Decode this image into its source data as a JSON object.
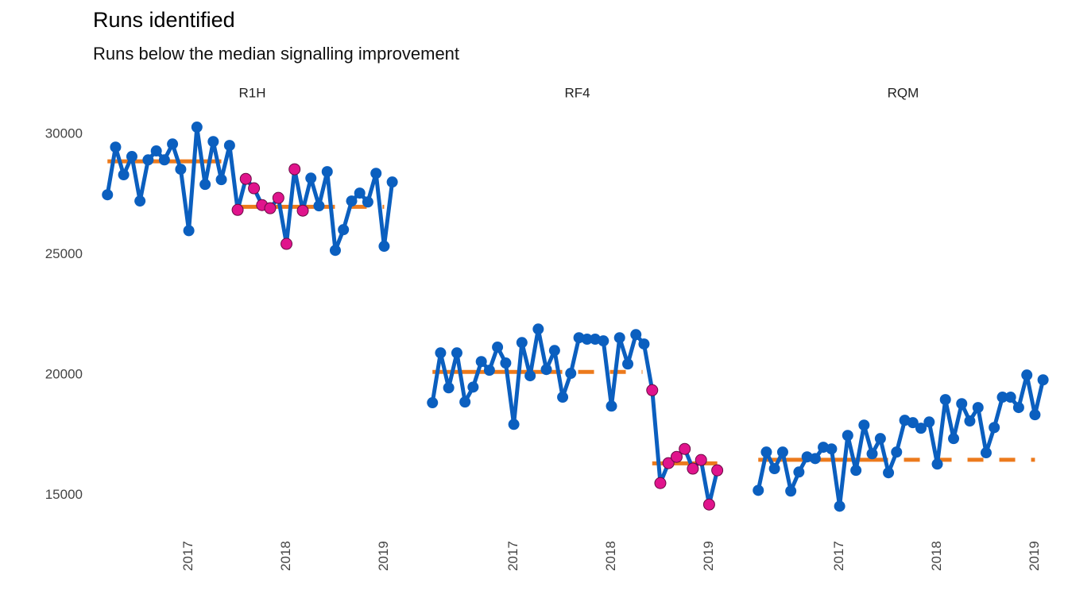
{
  "chart_data": {
    "type": "line",
    "title": "Runs identified",
    "subtitle": "Runs below the median signalling improvement",
    "x": [
      2016.167,
      2016.25,
      2016.333,
      2016.417,
      2016.5,
      2016.583,
      2016.667,
      2016.75,
      2016.833,
      2016.917,
      2017,
      2017.083,
      2017.167,
      2017.25,
      2017.333,
      2017.417,
      2017.5,
      2017.583,
      2017.667,
      2017.75,
      2017.833,
      2017.917,
      2018,
      2018.083,
      2018.167,
      2018.25,
      2018.333,
      2018.417,
      2018.5,
      2018.583,
      2018.667,
      2018.75,
      2018.833,
      2018.917,
      2019,
      2019.083
    ],
    "xlim": [
      2016.1,
      2019.2
    ],
    "xticks": [
      2017,
      2018,
      2019
    ],
    "ylim": [
      14000,
      30500
    ],
    "yticks": [
      15000,
      20000,
      25000,
      30000
    ],
    "panels": [
      {
        "name": "R1H",
        "series": [
          {
            "color": "#0b5fbf",
            "values": [
              27490,
              29470,
              28320,
              29080,
              27230,
              28940,
              29310,
              28940,
              29600,
              28550,
              26000,
              30300,
              27920,
              29700,
              28120,
              29540,
              26860,
              28150,
              27760,
              27060,
              26930,
              27360,
              25450,
              28550,
              26830,
              28180,
              27030,
              28450,
              25180,
              26040,
              27230,
              27560,
              27190,
              28380,
              25350,
              28020
            ]
          },
          {
            "color": "#e0148c",
            "values": [
              null,
              null,
              null,
              null,
              null,
              null,
              null,
              null,
              null,
              null,
              null,
              null,
              null,
              null,
              null,
              null,
              26860,
              28150,
              27760,
              27060,
              26930,
              27360,
              25450,
              28550,
              26830,
              null,
              null,
              null,
              null,
              null,
              null,
              null,
              null,
              null,
              null,
              null
            ]
          }
        ],
        "medians": [
          {
            "value": 28880,
            "solid": [
              2016.167,
              2017.333
            ],
            "dashed": null
          },
          {
            "value": 26990,
            "solid": [
              2017.5,
              2018.333
            ],
            "dashed": [
              2018.333,
              2019.0
            ]
          }
        ]
      },
      {
        "name": "RF4",
        "series": [
          {
            "color": "#0b5fbf",
            "values": [
              18850,
              20920,
              19470,
              20920,
              18880,
              19500,
              20560,
              20200,
              21160,
              20500,
              17950,
              21350,
              19970,
              21910,
              20230,
              21020,
              19080,
              20070,
              21550,
              21490,
              21490,
              21420,
              18710,
              21550,
              20460,
              21680,
              21290,
              19370,
              15510,
              16340,
              16600,
              16930,
              16110,
              16470,
              14620,
              16040
            ]
          },
          {
            "color": "#e0148c",
            "values": [
              null,
              null,
              null,
              null,
              null,
              null,
              null,
              null,
              null,
              null,
              null,
              null,
              null,
              null,
              null,
              null,
              null,
              null,
              null,
              null,
              null,
              null,
              null,
              null,
              null,
              null,
              null,
              19370,
              15510,
              16340,
              16600,
              16930,
              16110,
              16470,
              14620,
              16040
            ]
          }
        ],
        "medians": [
          {
            "value": 20130,
            "solid": [
              2016.167,
              2017.333
            ],
            "dashed": [
              2017.333,
              2018.317
            ]
          },
          {
            "value": 16330,
            "solid": [
              2018.417,
              2019.083
            ],
            "dashed": null
          }
        ]
      },
      {
        "name": "RQM",
        "series": [
          {
            "color": "#0b5fbf",
            "values": [
              15210,
              16800,
              16110,
              16800,
              15180,
              15970,
              16600,
              16530,
              17000,
              16930,
              14550,
              17490,
              16040,
              17920,
              16730,
              17360,
              15940,
              16800,
              18120,
              18020,
              17790,
              18050,
              16300,
              18980,
              17360,
              18810,
              18090,
              18650,
              16770,
              17820,
              19080,
              19080,
              18650,
              20000,
              18350,
              19800
            ]
          }
        ],
        "medians": [
          {
            "value": 16480,
            "solid": [
              2016.167,
              2017.333
            ],
            "dashed": [
              2017.333,
              2019.0
            ]
          }
        ]
      }
    ],
    "median_color": "#ec7a1c",
    "grid": false
  }
}
